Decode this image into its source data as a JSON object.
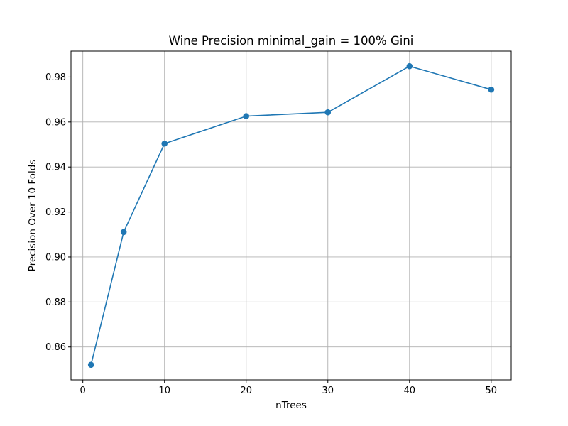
{
  "chart_data": {
    "type": "line",
    "title": "Wine Precision minimal_gain = 100% Gini",
    "xlabel": "nTrees",
    "ylabel": "Precision Over 10 Folds",
    "xlim": [
      -1.45,
      52.45
    ],
    "ylim": [
      0.8454,
      0.9915
    ],
    "x_ticks": [
      0,
      10,
      20,
      30,
      40,
      50
    ],
    "y_ticks": [
      0.86,
      0.88,
      0.9,
      0.92,
      0.94,
      0.96,
      0.98
    ],
    "y_tick_labels": [
      "0.86",
      "0.88",
      "0.90",
      "0.92",
      "0.94",
      "0.96",
      "0.98"
    ],
    "grid": true,
    "series": [
      {
        "x": [
          1,
          5,
          10,
          20,
          30,
          40,
          50
        ],
        "y": [
          0.8521,
          0.9111,
          0.9504,
          0.9626,
          0.9643,
          0.9848,
          0.9744
        ],
        "color": "#1f77b4",
        "marker": "circle"
      }
    ]
  }
}
